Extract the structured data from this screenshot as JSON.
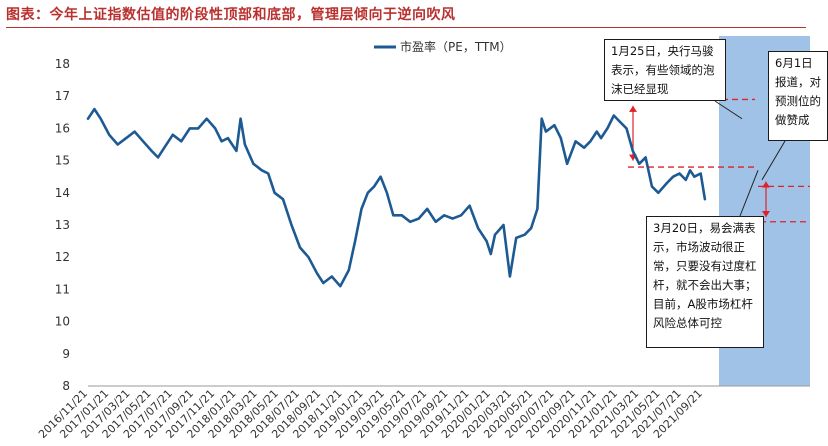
{
  "title": "图表：今年上证指数估值的阶段性顶部和底部，管理层倾向于逆向吹风",
  "colors": {
    "line": "#1d5a93",
    "shade": "#9fc2e6",
    "dash": "#e0202a",
    "title": "#b9312f"
  },
  "chart_data": {
    "type": "line",
    "series": [
      {
        "name": "市盈率（PE，TTM）"
      }
    ],
    "legend": "top-center",
    "ylim": [
      8,
      18
    ],
    "yticks": [
      "8",
      "9",
      "10",
      "11",
      "12",
      "13",
      "14",
      "15",
      "16",
      "17",
      "18"
    ],
    "xticks": [
      "2016/11/21",
      "2017/01/21",
      "2017/03/21",
      "2017/05/21",
      "2017/07/21",
      "2017/09/21",
      "2017/11/21",
      "2018/01/21",
      "2018/03/21",
      "2018/05/21",
      "2018/07/21",
      "2018/09/21",
      "2018/11/21",
      "2019/01/21",
      "2019/03/21",
      "2019/05/21",
      "2019/07/21",
      "2019/09/21",
      "2019/11/21",
      "2020/01/21",
      "2020/03/21",
      "2020/05/21",
      "2020/07/21",
      "2020/09/21",
      "2020/11/21",
      "2021/01/21",
      "2021/03/21",
      "2021/05/21",
      "2021/07/21",
      "2021/09/21"
    ],
    "points": [
      [
        0,
        16.3
      ],
      [
        0.3,
        16.6
      ],
      [
        0.6,
        16.3
      ],
      [
        1.0,
        15.8
      ],
      [
        1.4,
        15.5
      ],
      [
        1.8,
        15.7
      ],
      [
        2.2,
        15.9
      ],
      [
        2.6,
        15.6
      ],
      [
        3.0,
        15.3
      ],
      [
        3.3,
        15.1
      ],
      [
        3.6,
        15.4
      ],
      [
        4.0,
        15.8
      ],
      [
        4.4,
        15.6
      ],
      [
        4.8,
        16.0
      ],
      [
        5.2,
        16.0
      ],
      [
        5.6,
        16.3
      ],
      [
        6.0,
        16.0
      ],
      [
        6.3,
        15.6
      ],
      [
        6.6,
        15.7
      ],
      [
        7.0,
        15.3
      ],
      [
        7.2,
        16.3
      ],
      [
        7.4,
        15.5
      ],
      [
        7.8,
        14.9
      ],
      [
        8.2,
        14.7
      ],
      [
        8.5,
        14.6
      ],
      [
        8.8,
        14.0
      ],
      [
        9.2,
        13.8
      ],
      [
        9.6,
        13.0
      ],
      [
        10.0,
        12.3
      ],
      [
        10.4,
        12.0
      ],
      [
        10.8,
        11.5
      ],
      [
        11.1,
        11.2
      ],
      [
        11.5,
        11.4
      ],
      [
        11.9,
        11.1
      ],
      [
        12.3,
        11.6
      ],
      [
        12.6,
        12.5
      ],
      [
        12.9,
        13.5
      ],
      [
        13.2,
        14.0
      ],
      [
        13.5,
        14.2
      ],
      [
        13.8,
        14.5
      ],
      [
        14.1,
        14.0
      ],
      [
        14.4,
        13.3
      ],
      [
        14.8,
        13.3
      ],
      [
        15.2,
        13.1
      ],
      [
        15.6,
        13.2
      ],
      [
        16.0,
        13.5
      ],
      [
        16.4,
        13.1
      ],
      [
        16.8,
        13.3
      ],
      [
        17.2,
        13.2
      ],
      [
        17.6,
        13.3
      ],
      [
        18.0,
        13.6
      ],
      [
        18.4,
        12.9
      ],
      [
        18.8,
        12.5
      ],
      [
        19.0,
        12.1
      ],
      [
        19.2,
        12.7
      ],
      [
        19.6,
        13.0
      ],
      [
        19.9,
        11.4
      ],
      [
        20.2,
        12.6
      ],
      [
        20.6,
        12.7
      ],
      [
        20.9,
        12.9
      ],
      [
        21.2,
        13.5
      ],
      [
        21.4,
        16.3
      ],
      [
        21.6,
        15.9
      ],
      [
        22.0,
        16.1
      ],
      [
        22.3,
        15.7
      ],
      [
        22.6,
        14.9
      ],
      [
        23.0,
        15.6
      ],
      [
        23.4,
        15.4
      ],
      [
        23.7,
        15.6
      ],
      [
        24.0,
        15.9
      ],
      [
        24.2,
        15.7
      ],
      [
        24.5,
        16.0
      ],
      [
        24.8,
        16.4
      ],
      [
        25.1,
        16.2
      ],
      [
        25.4,
        16.0
      ],
      [
        25.7,
        15.3
      ],
      [
        26.0,
        14.9
      ],
      [
        26.3,
        15.1
      ],
      [
        26.6,
        14.2
      ],
      [
        26.9,
        14.0
      ],
      [
        27.3,
        14.3
      ],
      [
        27.6,
        14.5
      ],
      [
        27.9,
        14.6
      ],
      [
        28.2,
        14.4
      ],
      [
        28.4,
        14.7
      ],
      [
        28.6,
        14.5
      ],
      [
        28.9,
        14.6
      ],
      [
        29.1,
        13.8
      ]
    ],
    "annotations": [
      "1月25日，央行马骏表示，有些领域的泡沫已经显现",
      "6月1日报道，对预测位的做赞成",
      "3月20日，易会满表示，市场波动很正常，只要没有过度杠杆，就不会出大事；目前，A股市场杠杆风险总体可控"
    ]
  }
}
